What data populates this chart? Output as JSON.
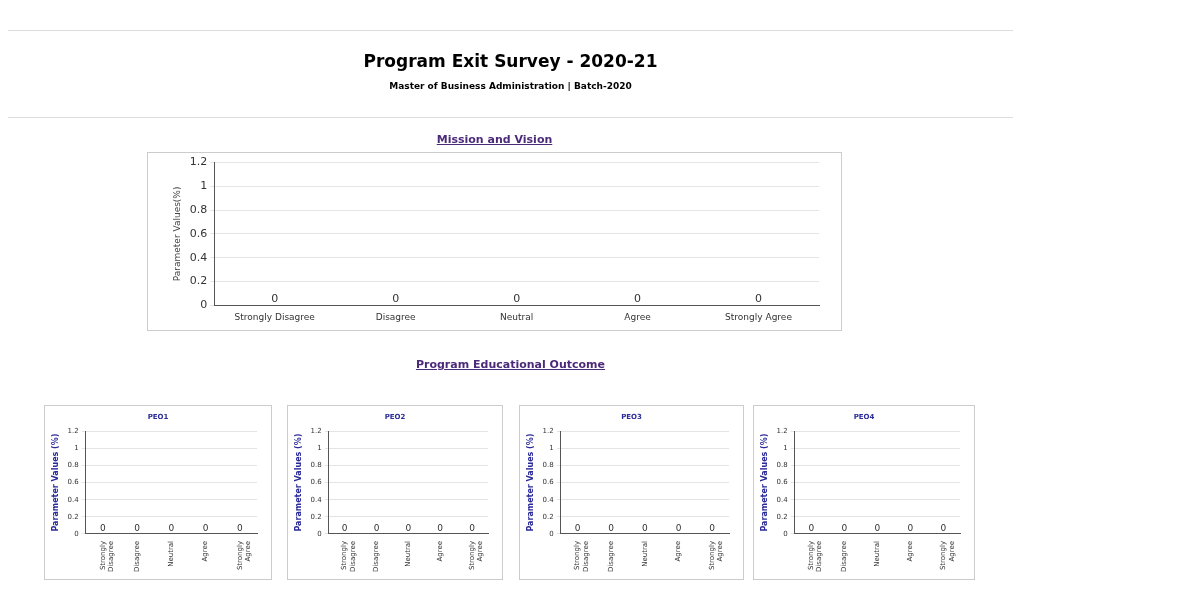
{
  "chart_data": [
    {
      "type": "other",
      "title": "Program Exit Survey - 2020-21",
      "subtitle": "Master of Business Administration | Batch-2020"
    },
    {
      "type": "bar",
      "title": "Mission and Vision",
      "ylabel": "Parameter Values(%)",
      "categories": [
        "Strongly Disagree",
        "Disagree",
        "Neutral",
        "Agree",
        "Strongly Agree"
      ],
      "values": [
        0,
        0,
        0,
        0,
        0
      ],
      "value_labels": [
        "0",
        "0",
        "0",
        "0",
        "0"
      ],
      "ylim": [
        0,
        1.2
      ],
      "yticks": [
        0,
        0.2,
        0.4,
        0.6,
        0.8,
        1,
        1.2
      ],
      "grid": "y"
    },
    {
      "type": "other",
      "title": "Program Educational Outcome"
    },
    {
      "type": "bar",
      "title": "PEO1",
      "ylabel": "Parameter Values (%)",
      "categories": [
        "Strongly Disagree",
        "Disagree",
        "Neutral",
        "Agree",
        "Strongly Agree"
      ],
      "values": [
        0,
        0,
        0,
        0,
        0
      ],
      "value_labels": [
        "0",
        "0",
        "0",
        "0",
        "0"
      ],
      "ylim": [
        0,
        1.2
      ],
      "yticks": [
        0,
        0.2,
        0.4,
        0.6,
        0.8,
        1,
        1.2
      ],
      "grid": "y"
    },
    {
      "type": "bar",
      "title": "PEO2",
      "ylabel": "Parameter Values (%)",
      "categories": [
        "Strongly Disagree",
        "Disagree",
        "Neutral",
        "Agree",
        "Strongly Agree"
      ],
      "values": [
        0,
        0,
        0,
        0,
        0
      ],
      "value_labels": [
        "0",
        "0",
        "0",
        "0",
        "0"
      ],
      "ylim": [
        0,
        1.2
      ],
      "yticks": [
        0,
        0.2,
        0.4,
        0.6,
        0.8,
        1,
        1.2
      ],
      "grid": "y"
    },
    {
      "type": "bar",
      "title": "PEO3",
      "ylabel": "Parameter Values (%)",
      "categories": [
        "Strongly Disagree",
        "Disagree",
        "Neutral",
        "Agree",
        "Strongly Agree"
      ],
      "values": [
        0,
        0,
        0,
        0,
        0
      ],
      "value_labels": [
        "0",
        "0",
        "0",
        "0",
        "0"
      ],
      "ylim": [
        0,
        1.2
      ],
      "yticks": [
        0,
        0.2,
        0.4,
        0.6,
        0.8,
        1,
        1.2
      ],
      "grid": "y"
    },
    {
      "type": "bar",
      "title": "PEO4",
      "ylabel": "Parameter Values (%)",
      "categories": [
        "Strongly Disagree",
        "Disagree",
        "Neutral",
        "Agree",
        "Strongly Agree"
      ],
      "values": [
        0,
        0,
        0,
        0,
        0
      ],
      "value_labels": [
        "0",
        "0",
        "0",
        "0",
        "0"
      ],
      "ylim": [
        0,
        1.2
      ],
      "yticks": [
        0,
        0.2,
        0.4,
        0.6,
        0.8,
        1,
        1.2
      ],
      "grid": "y"
    }
  ]
}
